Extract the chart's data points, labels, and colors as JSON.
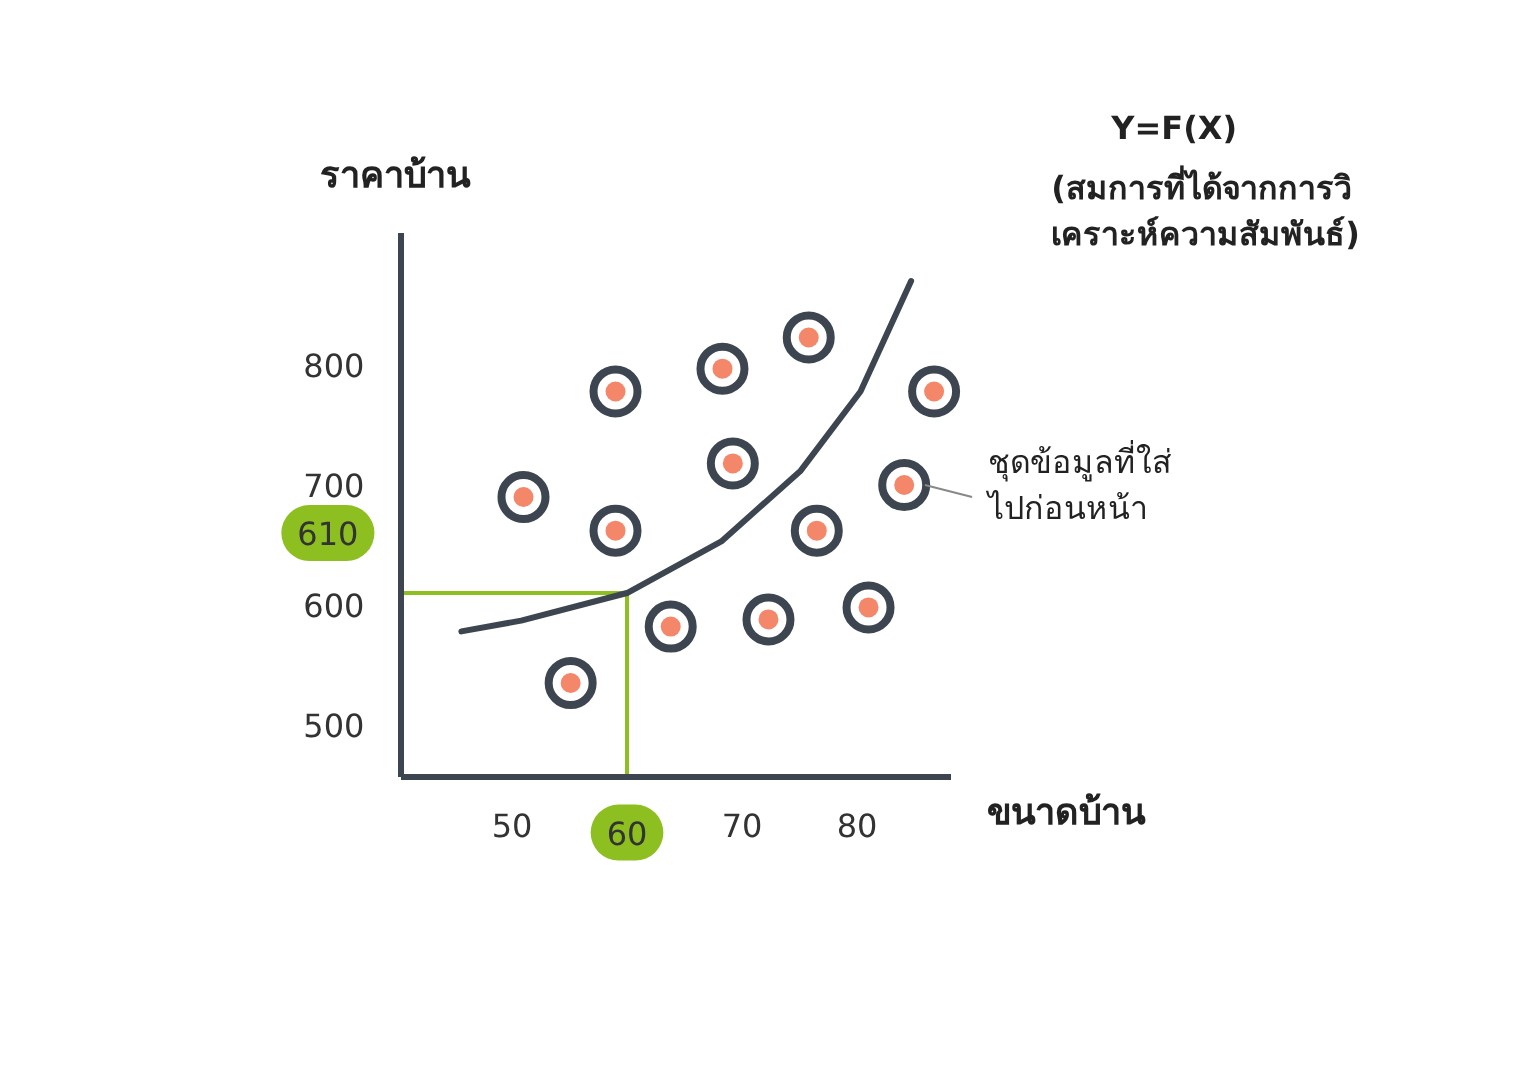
{
  "chart_data": {
    "type": "scatter",
    "xlabel": "ขนาดบ้าน",
    "ylabel": "ราคาบ้าน",
    "xlim": [
      40.3,
      88.2
    ],
    "ylim": [
      457,
      910
    ],
    "xticks": [
      50,
      60,
      70,
      80
    ],
    "yticks": [
      500,
      600,
      700,
      800
    ],
    "grid": false,
    "series": [
      {
        "color": "#f4866a",
        "marker": "circle",
        "x": [
          51.0,
          59.0,
          59.0,
          55.1,
          63.8,
          68.3,
          69.2,
          72.3,
          75.8,
          76.5,
          81.0,
          84.1,
          86.7
        ],
        "values": [
          690,
          778,
          662,
          535,
          582,
          797,
          718,
          588,
          823,
          662,
          598,
          700,
          778
        ]
      },
      {
        "type": "line",
        "color": "#3d4650",
        "x": [
          45.6,
          50.8,
          60,
          68.2,
          75.1,
          80.3,
          84.7
        ],
        "values": [
          578,
          587,
          610,
          653,
          712,
          778,
          870
        ]
      }
    ],
    "ref_lines": [
      {
        "axis": "x",
        "value": 60,
        "color": "#8cbf1f"
      },
      {
        "axis": "y",
        "value": 610,
        "color": "#8cbf1f",
        "label": "610"
      }
    ],
    "annotations": [
      "Y=F(X)",
      "(สมการที่ได้จากการวิเคราะห์ความสัมพันธ์)",
      {
        "text": "ชุดข้อมูลที่ใส่ไปก่อนหน้า",
        "x": 84.1,
        "y": 700
      }
    ]
  }
}
